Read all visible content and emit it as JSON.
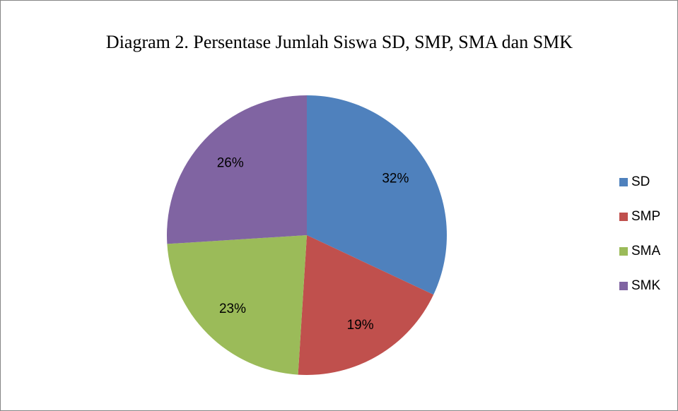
{
  "chart_data": {
    "type": "pie",
    "title": "Diagram 2. Persentase Jumlah Siswa SD, SMP, SMA dan SMK",
    "categories": [
      "SD",
      "SMP",
      "SMA",
      "SMK"
    ],
    "values": [
      32,
      19,
      23,
      26
    ],
    "value_labels": [
      "32%",
      "19%",
      "23%",
      "26%"
    ],
    "colors": [
      "#4f81bd",
      "#c0504d",
      "#9bbb59",
      "#8064a2"
    ],
    "legend": "right"
  }
}
